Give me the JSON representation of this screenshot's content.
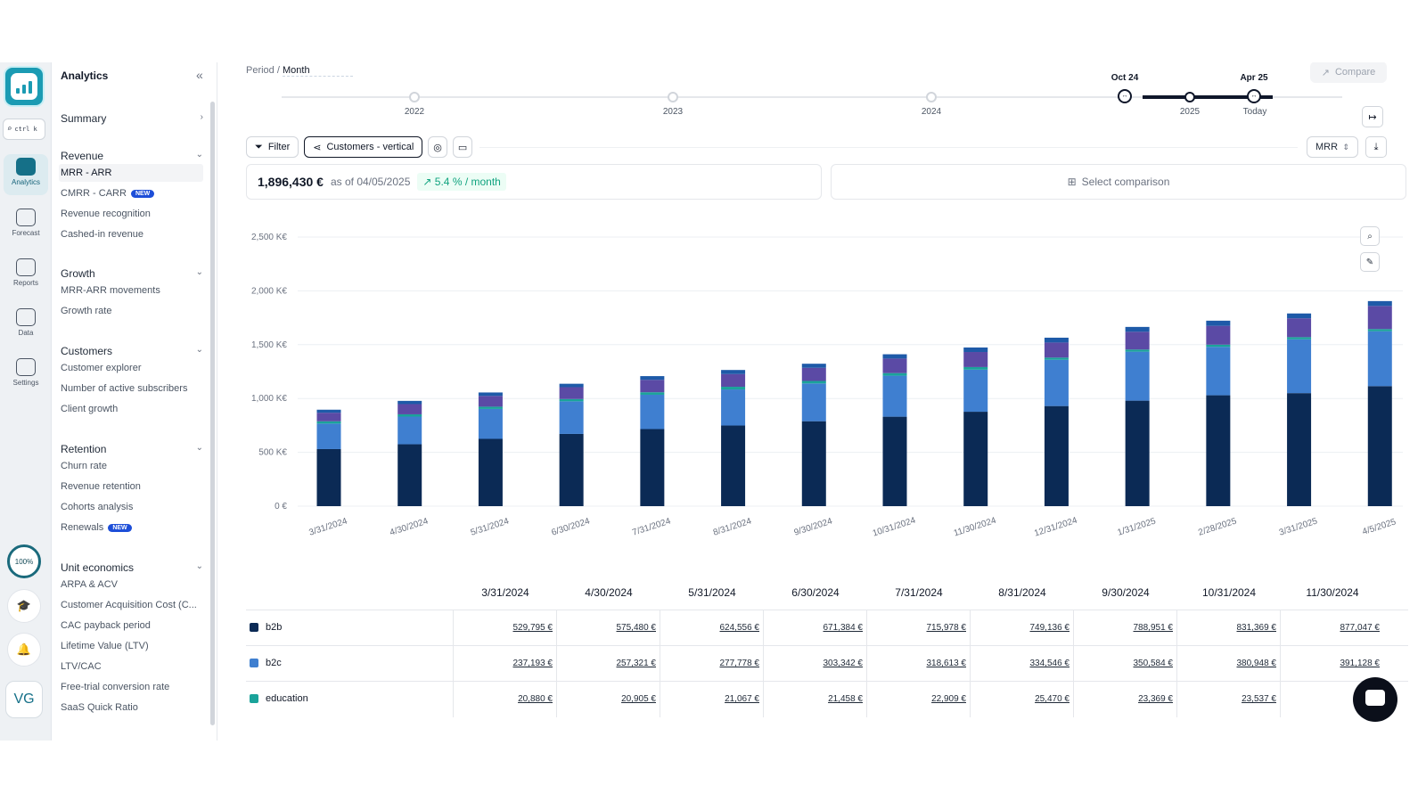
{
  "rail": {
    "search_kbd": "ctrl k",
    "items": [
      {
        "label": "Analytics",
        "icon": "analytics-icon",
        "active": true
      },
      {
        "label": "Forecast",
        "icon": "forecast-icon",
        "active": false
      },
      {
        "label": "Reports",
        "icon": "reports-icon",
        "active": false
      },
      {
        "label": "Data",
        "icon": "data-icon",
        "active": false
      },
      {
        "label": "Settings",
        "icon": "settings-icon",
        "active": false
      }
    ],
    "progress": "100%",
    "avatar": "VG"
  },
  "nav": {
    "title": "Analytics",
    "summary": "Summary",
    "sections": [
      {
        "title": "Revenue",
        "items": [
          "MRR - ARR",
          "CMRR - CARR",
          "Revenue recognition",
          "Cashed-in revenue"
        ]
      },
      {
        "title": "Growth",
        "items": [
          "MRR-ARR movements",
          "Growth rate"
        ]
      },
      {
        "title": "Customers",
        "items": [
          "Customer explorer",
          "Number of active subscribers",
          "Client growth"
        ]
      },
      {
        "title": "Retention",
        "items": [
          "Churn rate",
          "Revenue retention",
          "Cohorts analysis",
          "Renewals"
        ]
      },
      {
        "title": "Unit economics",
        "items": [
          "ARPA & ACV",
          "Customer Acquisition Cost (C...",
          "CAC payback period",
          "Lifetime Value (LTV)",
          "LTV/CAC",
          "Free-trial conversion rate",
          "SaaS Quick Ratio"
        ]
      }
    ],
    "new_badge": "NEW"
  },
  "header": {
    "period_label": "Period /",
    "period_value": "Month",
    "compare": "Compare",
    "years": [
      "2022",
      "2023",
      "2024",
      "2025"
    ],
    "range_start": "Oct 24",
    "range_end": "Apr 25",
    "today": "Today"
  },
  "toolbar": {
    "filter": "Filter",
    "segment": "Customers - vertical",
    "metric": "MRR"
  },
  "kpi": {
    "value": "1,896,430 €",
    "as_of": "as of 04/05/2025",
    "growth": "5.4 % / month",
    "select_comparison": "Select comparison"
  },
  "chart_data": {
    "type": "bar",
    "stacked": true,
    "categories": [
      "3/31/2024",
      "4/30/2024",
      "5/31/2024",
      "6/30/2024",
      "7/31/2024",
      "8/31/2024",
      "9/30/2024",
      "10/31/2024",
      "11/30/2024",
      "12/31/2024",
      "1/31/2025",
      "2/28/2025",
      "3/31/2025",
      "4/5/2025"
    ],
    "y_ticks": [
      "0 €",
      "500 K€",
      "1,000 K€",
      "1,500 K€",
      "2,000 K€",
      "2,500 K€"
    ],
    "ylim": [
      0,
      2500
    ],
    "series": [
      {
        "name": "b2b",
        "color": "#0b2a55",
        "values": [
          530,
          575,
          625,
          671,
          716,
          749,
          789,
          831,
          877,
          930,
          980,
          1030,
          1050,
          1115
        ]
      },
      {
        "name": "b2c",
        "color": "#3f7fd0",
        "values": [
          237,
          257,
          278,
          303,
          319,
          335,
          351,
          381,
          391,
          430,
          455,
          450,
          500,
          510
        ]
      },
      {
        "name": "education",
        "color": "#1aa39a",
        "values": [
          21,
          21,
          21,
          21,
          23,
          25,
          23,
          24,
          24,
          20,
          20,
          20,
          20,
          20
        ]
      },
      {
        "name": "",
        "color": "#5b4aa5",
        "values": [
          80,
          95,
          100,
          110,
          115,
          118,
          122,
          135,
          140,
          140,
          165,
          175,
          175,
          215
        ]
      },
      {
        "name": "",
        "color": "#1e5aa8",
        "values": [
          28,
          30,
          32,
          32,
          35,
          38,
          38,
          40,
          42,
          45,
          45,
          48,
          45,
          45
        ]
      }
    ]
  },
  "table": {
    "columns": [
      "3/31/2024",
      "4/30/2024",
      "5/31/2024",
      "6/30/2024",
      "7/31/2024",
      "8/31/2024",
      "9/30/2024",
      "10/31/2024",
      "11/30/2024"
    ],
    "rows": [
      {
        "name": "b2b",
        "color": "#0b2a55",
        "cells": [
          "529,795 €",
          "575,480 €",
          "624,556 €",
          "671,384 €",
          "715,978 €",
          "749,136 €",
          "788,951 €",
          "831,369 €",
          "877,047 €"
        ]
      },
      {
        "name": "b2c",
        "color": "#3f7fd0",
        "cells": [
          "237,193 €",
          "257,321 €",
          "277,778 €",
          "303,342 €",
          "318,613 €",
          "334,546 €",
          "350,584 €",
          "380,948 €",
          "391,128 €"
        ]
      },
      {
        "name": "education",
        "color": "#1aa39a",
        "cells": [
          "20,880 €",
          "20,905 €",
          "21,067 €",
          "21,458 €",
          "22,909 €",
          "25,470 €",
          "23,369 €",
          "23,537 €",
          "24,4..."
        ]
      }
    ]
  }
}
